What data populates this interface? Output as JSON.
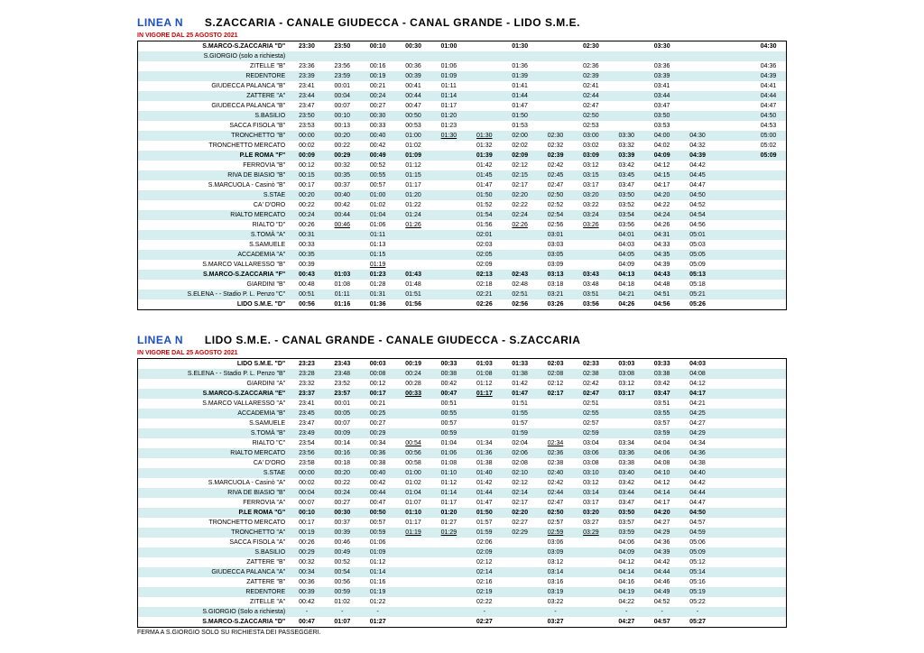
{
  "table1": {
    "linea_label": "LINEA N",
    "route_title": "S.ZACCARIA - CANALE GIUDECCA - CANAL GRANDE - LIDO S.M.E.",
    "validity": "IN VIGORE DAL 25 AGOSTO 2021",
    "stops": [
      {
        "name": "S.MARCO-S.ZACCARIA \"D\"",
        "bold": true,
        "times": [
          "23:30",
          "23:50",
          "00:10",
          "00:30",
          "01:00",
          "",
          "01:30",
          "",
          "02:30",
          "",
          "03:30",
          "",
          "",
          "04:30"
        ]
      },
      {
        "name": "S.GIORGIO (solo a richiesta)",
        "times": [
          "",
          "",
          "",
          "",
          "",
          "",
          "",
          "",
          "",
          "",
          "",
          "",
          "",
          ""
        ]
      },
      {
        "name": "ZITELLE \"B\"",
        "times": [
          "23:36",
          "23:56",
          "00:16",
          "00:36",
          "01:06",
          "",
          "01:36",
          "",
          "02:36",
          "",
          "03:36",
          "",
          "",
          "04:36"
        ]
      },
      {
        "name": "REDENTORE",
        "times": [
          "23:39",
          "23:59",
          "00:19",
          "00:39",
          "01:09",
          "",
          "01:39",
          "",
          "02:39",
          "",
          "03:39",
          "",
          "",
          "04:39"
        ]
      },
      {
        "name": "GIUDECCA PALANCA \"B\"",
        "times": [
          "23:41",
          "00:01",
          "00:21",
          "00:41",
          "01:11",
          "",
          "01:41",
          "",
          "02:41",
          "",
          "03:41",
          "",
          "",
          "04:41"
        ]
      },
      {
        "name": "ZATTERE \"A\"",
        "times": [
          "23:44",
          "00:04",
          "00:24",
          "00:44",
          "01:14",
          "",
          "01:44",
          "",
          "02:44",
          "",
          "03:44",
          "",
          "",
          "04:44"
        ]
      },
      {
        "name": "GIUDECCA PALANCA \"B\"",
        "times": [
          "23:47",
          "00:07",
          "00:27",
          "00:47",
          "01:17",
          "",
          "01:47",
          "",
          "02:47",
          "",
          "03:47",
          "",
          "",
          "04:47"
        ]
      },
      {
        "name": "S.BASILIO",
        "times": [
          "23:50",
          "00:10",
          "00:30",
          "00:50",
          "01:20",
          "",
          "01:50",
          "",
          "02:50",
          "",
          "03:50",
          "",
          "",
          "04:50"
        ]
      },
      {
        "name": "SACCA FISOLA \"B\"",
        "times": [
          "23:53",
          "00:13",
          "00:33",
          "00:53",
          "01:23",
          "",
          "01:53",
          "",
          "02:53",
          "",
          "03:53",
          "",
          "",
          "04:53"
        ]
      },
      {
        "name": "TRONCHETTO \"B\"",
        "times": [
          "00:00",
          "00:20",
          "00:40",
          "01:00",
          "01:30",
          "01:30",
          "02:00",
          "02:30",
          "03:00",
          "03:30",
          "04:00",
          "04:30",
          "",
          "05:00"
        ],
        "underline": [
          4,
          5
        ]
      },
      {
        "name": "TRONCHETTO MERCATO",
        "times": [
          "00:02",
          "00:22",
          "00:42",
          "01:02",
          "",
          "01:32",
          "02:02",
          "02:32",
          "03:02",
          "03:32",
          "04:02",
          "04:32",
          "",
          "05:02"
        ]
      },
      {
        "name": "P.LE ROMA \"F\"",
        "bold": true,
        "times": [
          "00:09",
          "00:29",
          "00:49",
          "01:09",
          "",
          "01:39",
          "02:09",
          "02:39",
          "03:09",
          "03:39",
          "04:09",
          "04:39",
          "",
          "05:09"
        ]
      },
      {
        "name": "FERROVIA \"B\"",
        "times": [
          "00:12",
          "00:32",
          "00:52",
          "01:12",
          "",
          "01:42",
          "02:12",
          "02:42",
          "03:12",
          "03:42",
          "04:12",
          "04:42",
          "",
          ""
        ]
      },
      {
        "name": "RIVA DE BIASIO \"B\"",
        "times": [
          "00:15",
          "00:35",
          "00:55",
          "01:15",
          "",
          "01:45",
          "02:15",
          "02:45",
          "03:15",
          "03:45",
          "04:15",
          "04:45",
          "",
          ""
        ]
      },
      {
        "name": "S.MARCUOLA - Casinò \"B\"",
        "times": [
          "00:17",
          "00:37",
          "00:57",
          "01:17",
          "",
          "01:47",
          "02:17",
          "02:47",
          "03:17",
          "03:47",
          "04:17",
          "04:47",
          "",
          ""
        ]
      },
      {
        "name": "S.STAE",
        "times": [
          "00:20",
          "00:40",
          "01:00",
          "01:20",
          "",
          "01:50",
          "02:20",
          "02:50",
          "03:20",
          "03:50",
          "04:20",
          "04:50",
          "",
          ""
        ]
      },
      {
        "name": "CA' D'ORO",
        "times": [
          "00:22",
          "00:42",
          "01:02",
          "01:22",
          "",
          "01:52",
          "02:22",
          "02:52",
          "03:22",
          "03:52",
          "04:22",
          "04:52",
          "",
          ""
        ]
      },
      {
        "name": "RIALTO MERCATO",
        "times": [
          "00:24",
          "00:44",
          "01:04",
          "01:24",
          "",
          "01:54",
          "02:24",
          "02:54",
          "03:24",
          "03:54",
          "04:24",
          "04:54",
          "",
          ""
        ]
      },
      {
        "name": "RIALTO \"D\"",
        "times": [
          "00:26",
          "00:46",
          "01:06",
          "01:26",
          "",
          "01:56",
          "02:26",
          "02:56",
          "03:26",
          "03:56",
          "04:26",
          "04:56",
          "",
          ""
        ],
        "underline": [
          1,
          3,
          6,
          8
        ]
      },
      {
        "name": "S.TOMÀ \"A\"",
        "times": [
          "00:31",
          "",
          "01:11",
          "",
          "",
          "02:01",
          "",
          "03:01",
          "",
          "04:01",
          "04:31",
          "05:01",
          "",
          ""
        ]
      },
      {
        "name": "S.SAMUELE",
        "times": [
          "00:33",
          "",
          "01:13",
          "",
          "",
          "02:03",
          "",
          "03:03",
          "",
          "04:03",
          "04:33",
          "05:03",
          "",
          ""
        ]
      },
      {
        "name": "ACCADEMIA \"A\"",
        "times": [
          "00:35",
          "",
          "01:15",
          "",
          "",
          "02:05",
          "",
          "03:05",
          "",
          "04:05",
          "04:35",
          "05:05",
          "",
          ""
        ]
      },
      {
        "name": "S.MARCO VALLARESSO \"B\"",
        "times": [
          "00:39",
          "",
          "01:19",
          "",
          "",
          "02:09",
          "",
          "03:09",
          "",
          "04:09",
          "04:39",
          "05:09",
          "",
          ""
        ],
        "underline": [
          2
        ]
      },
      {
        "name": "S.MARCO-S.ZACCARIA \"F\"",
        "bold": true,
        "times": [
          "00:43",
          "01:03",
          "01:23",
          "01:43",
          "",
          "02:13",
          "02:43",
          "03:13",
          "03:43",
          "04:13",
          "04:43",
          "05:13",
          "",
          ""
        ]
      },
      {
        "name": "GIARDINI \"B\"",
        "times": [
          "00:48",
          "01:08",
          "01:28",
          "01:48",
          "",
          "02:18",
          "02:48",
          "03:18",
          "03:48",
          "04:18",
          "04:48",
          "05:18",
          "",
          ""
        ]
      },
      {
        "name": "S.ELENA -  - Stadio P. L. Penzo \"C\"",
        "times": [
          "00:51",
          "01:11",
          "01:31",
          "01:51",
          "",
          "02:21",
          "02:51",
          "03:21",
          "03:51",
          "04:21",
          "04:51",
          "05:21",
          "",
          ""
        ]
      },
      {
        "name": "LIDO S.M.E. \"D\"",
        "bold": true,
        "times": [
          "00:56",
          "01:16",
          "01:36",
          "01:56",
          "",
          "02:26",
          "02:56",
          "03:26",
          "03:56",
          "04:26",
          "04:56",
          "05:26",
          "",
          ""
        ]
      }
    ]
  },
  "table2": {
    "linea_label": "LINEA N",
    "route_title": "LIDO S.M.E. - CANAL GRANDE - CANALE GIUDECCA - S.ZACCARIA",
    "validity": "IN VIGORE DAL 25 AGOSTO 2021",
    "stops": [
      {
        "name": "LIDO S.M.E. \"D\"",
        "bold": true,
        "times": [
          "23:23",
          "23:43",
          "00:03",
          "00:19",
          "00:33",
          "01:03",
          "01:33",
          "02:03",
          "02:33",
          "03:03",
          "03:33",
          "04:03",
          "",
          ""
        ]
      },
      {
        "name": "S.ELENA -  - Stadio P. L. Penzo \"B\"",
        "times": [
          "23:28",
          "23:48",
          "00:08",
          "00:24",
          "00:38",
          "01:08",
          "01:38",
          "02:08",
          "02:38",
          "03:08",
          "03:38",
          "04:08",
          "",
          ""
        ]
      },
      {
        "name": "GIARDINI \"A\"",
        "times": [
          "23:32",
          "23:52",
          "00:12",
          "00:28",
          "00:42",
          "01:12",
          "01:42",
          "02:12",
          "02:42",
          "03:12",
          "03:42",
          "04:12",
          "",
          ""
        ]
      },
      {
        "name": "S.MARCO-S.ZACCARIA \"E\"",
        "bold": true,
        "times": [
          "23:37",
          "23:57",
          "00:17",
          "00:33",
          "00:47",
          "01:17",
          "01:47",
          "02:17",
          "02:47",
          "03:17",
          "03:47",
          "04:17",
          "",
          ""
        ],
        "underline": [
          3,
          5
        ]
      },
      {
        "name": "S.MARCO VALLARESSO \"A\"",
        "times": [
          "23:41",
          "00:01",
          "00:21",
          "",
          "00:51",
          "",
          "01:51",
          "",
          "02:51",
          "",
          "03:51",
          "04:21",
          "",
          ""
        ]
      },
      {
        "name": "ACCADEMIA \"B\"",
        "times": [
          "23:45",
          "00:05",
          "00:25",
          "",
          "00:55",
          "",
          "01:55",
          "",
          "02:55",
          "",
          "03:55",
          "04:25",
          "",
          ""
        ]
      },
      {
        "name": "S.SAMUELE",
        "times": [
          "23:47",
          "00:07",
          "00:27",
          "",
          "00:57",
          "",
          "01:57",
          "",
          "02:57",
          "",
          "03:57",
          "04:27",
          "",
          ""
        ]
      },
      {
        "name": "S.TOMÀ \"B\"",
        "times": [
          "23:49",
          "00:09",
          "00:29",
          "",
          "00:59",
          "",
          "01:59",
          "",
          "02:59",
          "",
          "03:59",
          "04:29",
          "",
          ""
        ]
      },
      {
        "name": "RIALTO \"C\"",
        "times": [
          "23:54",
          "00:14",
          "00:34",
          "00:54",
          "01:04",
          "01:34",
          "02:04",
          "02:34",
          "03:04",
          "03:34",
          "04:04",
          "04:34",
          "",
          ""
        ],
        "underline": [
          3,
          7
        ]
      },
      {
        "name": "RIALTO MERCATO",
        "times": [
          "23:56",
          "00:16",
          "00:36",
          "00:56",
          "01:06",
          "01:36",
          "02:06",
          "02:36",
          "03:06",
          "03:36",
          "04:06",
          "04:36",
          "",
          ""
        ]
      },
      {
        "name": "CA' D'ORO",
        "times": [
          "23:58",
          "00:18",
          "00:38",
          "00:58",
          "01:08",
          "01:38",
          "02:08",
          "02:38",
          "03:08",
          "03:38",
          "04:08",
          "04:38",
          "",
          ""
        ]
      },
      {
        "name": "S.STAE",
        "times": [
          "00:00",
          "00:20",
          "00:40",
          "01:00",
          "01:10",
          "01:40",
          "02:10",
          "02:40",
          "03:10",
          "03:40",
          "04:10",
          "04:40",
          "",
          ""
        ]
      },
      {
        "name": "S.MARCUOLA - Casinò \"A\"",
        "times": [
          "00:02",
          "00:22",
          "00:42",
          "01:02",
          "01:12",
          "01:42",
          "02:12",
          "02:42",
          "03:12",
          "03:42",
          "04:12",
          "04:42",
          "",
          ""
        ]
      },
      {
        "name": "RIVA DE BIASIO \"B\"",
        "times": [
          "00:04",
          "00:24",
          "00:44",
          "01:04",
          "01:14",
          "01:44",
          "02:14",
          "02:44",
          "03:14",
          "03:44",
          "04:14",
          "04:44",
          "",
          ""
        ]
      },
      {
        "name": "FERROVIA \"A\"",
        "times": [
          "00:07",
          "00:27",
          "00:47",
          "01:07",
          "01:17",
          "01:47",
          "02:17",
          "02:47",
          "03:17",
          "03:47",
          "04:17",
          "04:47",
          "",
          ""
        ]
      },
      {
        "name": "P.LE ROMA \"G\"",
        "bold": true,
        "times": [
          "00:10",
          "00:30",
          "00:50",
          "01:10",
          "01:20",
          "01:50",
          "02:20",
          "02:50",
          "03:20",
          "03:50",
          "04:20",
          "04:50",
          "",
          ""
        ]
      },
      {
        "name": "TRONCHETTO MERCATO",
        "times": [
          "00:17",
          "00:37",
          "00:57",
          "01:17",
          "01:27",
          "01:57",
          "02:27",
          "02:57",
          "03:27",
          "03:57",
          "04:27",
          "04:57",
          "",
          ""
        ]
      },
      {
        "name": "TRONCHETTO \"A\"",
        "times": [
          "00:19",
          "00:39",
          "00:59",
          "01:19",
          "01:29",
          "01:59",
          "02:29",
          "02:59",
          "03:29",
          "03:59",
          "04:29",
          "04:59",
          "",
          ""
        ],
        "underline": [
          3,
          4,
          7,
          8
        ]
      },
      {
        "name": "SACCA FISOLA \"A\"",
        "times": [
          "00:26",
          "00:46",
          "01:06",
          "",
          "",
          "02:06",
          "",
          "03:06",
          "",
          "04:06",
          "04:36",
          "05:06",
          "",
          ""
        ]
      },
      {
        "name": "S.BASILIO",
        "times": [
          "00:29",
          "00:49",
          "01:09",
          "",
          "",
          "02:09",
          "",
          "03:09",
          "",
          "04:09",
          "04:39",
          "05:09",
          "",
          ""
        ]
      },
      {
        "name": "ZATTERE \"B\"",
        "times": [
          "00:32",
          "00:52",
          "01:12",
          "",
          "",
          "02:12",
          "",
          "03:12",
          "",
          "04:12",
          "04:42",
          "05:12",
          "",
          ""
        ]
      },
      {
        "name": "GIUDECCA PALANCA \"A\"",
        "times": [
          "00:34",
          "00:54",
          "01:14",
          "",
          "",
          "02:14",
          "",
          "03:14",
          "",
          "04:14",
          "04:44",
          "05:14",
          "",
          ""
        ]
      },
      {
        "name": "ZATTERE \"B\"",
        "times": [
          "00:36",
          "00:56",
          "01:16",
          "",
          "",
          "02:16",
          "",
          "03:16",
          "",
          "04:16",
          "04:46",
          "05:16",
          "",
          ""
        ]
      },
      {
        "name": "REDENTORE",
        "times": [
          "00:39",
          "00:59",
          "01:19",
          "",
          "",
          "02:19",
          "",
          "03:19",
          "",
          "04:19",
          "04:49",
          "05:19",
          "",
          ""
        ]
      },
      {
        "name": "ZITELLE \"A\"",
        "times": [
          "00:42",
          "01:02",
          "01:22",
          "",
          "",
          "02:22",
          "",
          "03:22",
          "",
          "04:22",
          "04:52",
          "05:22",
          "",
          ""
        ]
      },
      {
        "name": "S.GIORGIO (Solo a richiesta)",
        "times": [
          "-",
          "-",
          "-",
          "",
          "",
          "-",
          "",
          "-",
          "",
          "-",
          "-",
          "-",
          "",
          ""
        ]
      },
      {
        "name": "S.MARCO-S.ZACCARIA \"D\"",
        "bold": true,
        "times": [
          "00:47",
          "01:07",
          "01:27",
          "",
          "",
          "02:27",
          "",
          "03:27",
          "",
          "04:27",
          "04:57",
          "05:27",
          "",
          ""
        ]
      }
    ],
    "footnote": "FERMA A S.GIORGIO SOLO SU RICHIESTA DEI PASSEGGERI."
  },
  "styling": {
    "linea_color": "#1a4fbf",
    "validity_color": "#cc0000",
    "stripe_color": "#d6eef0",
    "border_color": "#000000",
    "cell_font_size": 7,
    "heading_font_size": 12,
    "num_time_cols": 14
  }
}
